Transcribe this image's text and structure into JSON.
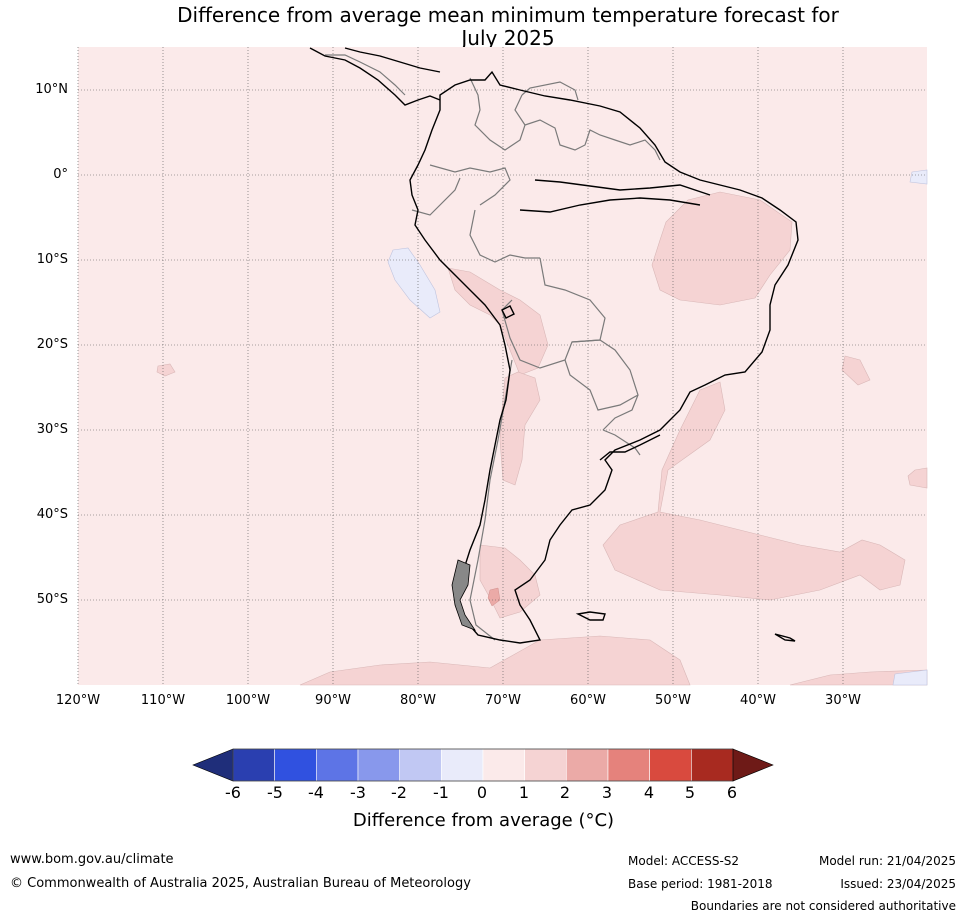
{
  "title_line1": "Difference from average mean minimum temperature forecast for",
  "title_line2": "July 2025",
  "lat_labels": [
    "10°N",
    "0°",
    "10°S",
    "20°S",
    "30°S",
    "40°S",
    "50°S"
  ],
  "lon_labels": [
    "120°W",
    "110°W",
    "100°W",
    "90°W",
    "80°W",
    "70°W",
    "60°W",
    "50°W",
    "40°W",
    "30°W"
  ],
  "colorbar": {
    "ticks": [
      "-6",
      "-5",
      "-4",
      "-3",
      "-2",
      "-1",
      "0",
      "1",
      "2",
      "3",
      "4",
      "5",
      "6"
    ],
    "colors": [
      "#1f2e7a",
      "#2a3fb0",
      "#3051e0",
      "#5d74e6",
      "#8898ec",
      "#c1c8f3",
      "#e9ebfa",
      "#fbeaea",
      "#f5d3d3",
      "#ebaaa7",
      "#e5827c",
      "#d94a3e",
      "#a82a20",
      "#6e1a17"
    ],
    "label": "Difference from average (°C)"
  },
  "colors": {
    "background_anomaly": "#fbeaea",
    "warm_anomaly": "#f5d3d3",
    "warmer_anomaly": "#ebaaa7",
    "cool_anomaly": "#e9ebfa"
  },
  "footer": {
    "url": "www.bom.gov.au/climate",
    "copyright": "© Commonwealth of Australia 2025, Australian Bureau of Meteorology",
    "model": "Model: ACCESS-S2",
    "base_period": "Base period: 1981-2018",
    "model_run": "Model run: 21/04/2025",
    "issued": "Issued: 23/04/2025",
    "disclaimer": "Boundaries are not considered authoritative"
  }
}
